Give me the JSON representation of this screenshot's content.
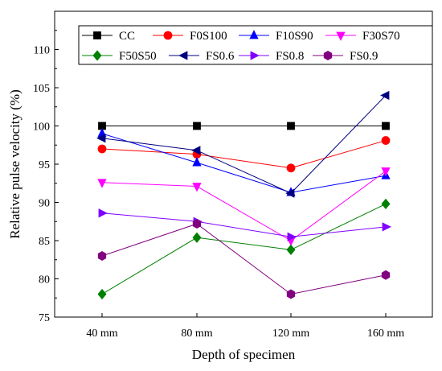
{
  "chart_data": {
    "type": "line",
    "title": "",
    "xlabel": "Depth of specimen",
    "ylabel": "Relative pulse velocity (%)",
    "categories": [
      "40 mm",
      "80 mm",
      "120 mm",
      "160 mm"
    ],
    "ylim": [
      75,
      115
    ],
    "yticks": [
      75,
      80,
      85,
      90,
      95,
      100,
      105,
      110
    ],
    "grid": false,
    "legend_position": "top",
    "series": [
      {
        "name": "CC",
        "color": "#000000",
        "marker": "square",
        "values": [
          100,
          100,
          100,
          100
        ]
      },
      {
        "name": "F0S100",
        "color": "#ff0000",
        "marker": "circle",
        "values": [
          97,
          96.3,
          94.5,
          98.1
        ]
      },
      {
        "name": "F10S90",
        "color": "#0000ff",
        "marker": "triangle-up",
        "values": [
          99,
          95.2,
          91.3,
          93.5
        ]
      },
      {
        "name": "F30S70",
        "color": "#ff00ff",
        "marker": "triangle-down",
        "values": [
          92.6,
          92.1,
          85,
          94.1
        ]
      },
      {
        "name": "F50S50",
        "color": "#008000",
        "marker": "diamond",
        "values": [
          78,
          85.4,
          83.8,
          89.8
        ]
      },
      {
        "name": "FS0.6",
        "color": "#000080",
        "marker": "triangle-left",
        "values": [
          98.4,
          96.8,
          91.2,
          104
        ]
      },
      {
        "name": "FS0.8",
        "color": "#8000ff",
        "marker": "triangle-right",
        "values": [
          88.6,
          87.5,
          85.5,
          86.8
        ]
      },
      {
        "name": "FS0.9",
        "color": "#800080",
        "marker": "hexagon",
        "values": [
          83,
          87.2,
          78,
          80.5
        ]
      }
    ]
  }
}
